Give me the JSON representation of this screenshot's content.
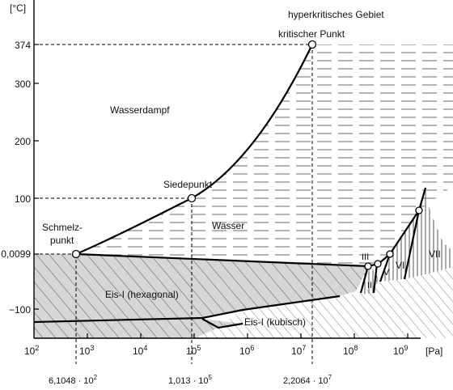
{
  "axes": {
    "x_unit": "[Pa]",
    "y_unit": "[°C]",
    "x_ticks": [
      {
        "base": "10",
        "exp": "2"
      },
      {
        "base": "10",
        "exp": "3"
      },
      {
        "base": "10",
        "exp": "4"
      },
      {
        "base": "10",
        "exp": "5"
      },
      {
        "base": "10",
        "exp": "6"
      },
      {
        "base": "10",
        "exp": "7"
      },
      {
        "base": "10",
        "exp": "8"
      },
      {
        "base": "10",
        "exp": "9"
      }
    ],
    "y_ticks": [
      "374",
      "300",
      "200",
      "100",
      "0,0099",
      "−100"
    ]
  },
  "pressure_labels": {
    "triple": {
      "mantissa": "6,1048 · 10",
      "exp": "2"
    },
    "boiling": {
      "mantissa": "1,013 · 10",
      "exp": "5"
    },
    "critical": {
      "mantissa": "2,2064 · 10",
      "exp": "7"
    }
  },
  "regions": {
    "supercritical": "hyperkritisches Gebiet",
    "vapor": "Wasserdampf",
    "liquid": "Wasser",
    "ice_hex": "Eis-I (hexagonal)",
    "ice_cubic": "Eis-I (kubisch)"
  },
  "points": {
    "critical": "kritischer Punkt",
    "boiling": "Siedepunkt",
    "melting_line1": "Schmelz-",
    "melting_line2": "punkt"
  },
  "ice_phases": {
    "ii": "II",
    "iii": "III",
    "v": "V",
    "vi": "VI",
    "vii": "VII"
  },
  "colors": {
    "ice_fill": "#d6d6d6",
    "line": "#000000"
  }
}
